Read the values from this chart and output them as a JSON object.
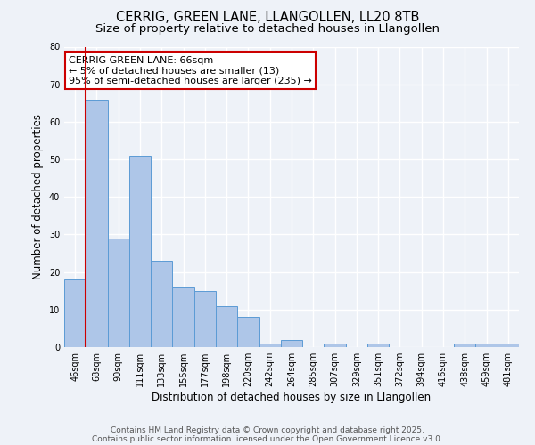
{
  "title1": "CERRIG, GREEN LANE, LLANGOLLEN, LL20 8TB",
  "title2": "Size of property relative to detached houses in Llangollen",
  "xlabel": "Distribution of detached houses by size in Llangollen",
  "ylabel": "Number of detached properties",
  "categories": [
    "46sqm",
    "68sqm",
    "90sqm",
    "111sqm",
    "133sqm",
    "155sqm",
    "177sqm",
    "198sqm",
    "220sqm",
    "242sqm",
    "264sqm",
    "285sqm",
    "307sqm",
    "329sqm",
    "351sqm",
    "372sqm",
    "394sqm",
    "416sqm",
    "438sqm",
    "459sqm",
    "481sqm"
  ],
  "values": [
    18,
    66,
    29,
    51,
    23,
    16,
    15,
    11,
    8,
    1,
    2,
    0,
    1,
    0,
    1,
    0,
    0,
    0,
    1,
    1,
    1
  ],
  "bar_color": "#aec6e8",
  "bar_edge_color": "#5b9bd5",
  "annotation_line1": "CERRIG GREEN LANE: 66sqm",
  "annotation_line2": "← 5% of detached houses are smaller (13)",
  "annotation_line3": "95% of semi-detached houses are larger (235) →",
  "annotation_box_color": "#ffffff",
  "annotation_box_edge_color": "#cc0000",
  "vline_color": "#cc0000",
  "footer1": "Contains HM Land Registry data © Crown copyright and database right 2025.",
  "footer2": "Contains public sector information licensed under the Open Government Licence v3.0.",
  "ylim": [
    0,
    80
  ],
  "yticks": [
    0,
    10,
    20,
    30,
    40,
    50,
    60,
    70,
    80
  ],
  "background_color": "#eef2f8",
  "plot_bg_color": "#eef2f8",
  "grid_color": "#ffffff",
  "title_fontsize": 10.5,
  "subtitle_fontsize": 9.5,
  "axis_label_fontsize": 8.5,
  "tick_fontsize": 7,
  "annotation_fontsize": 8,
  "footer_fontsize": 6.5
}
